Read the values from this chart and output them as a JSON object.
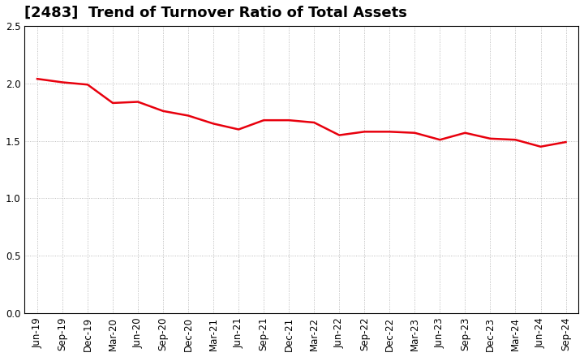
{
  "title": "[2483]  Trend of Turnover Ratio of Total Assets",
  "x_labels": [
    "Jun-19",
    "Sep-19",
    "Dec-19",
    "Mar-20",
    "Jun-20",
    "Sep-20",
    "Dec-20",
    "Mar-21",
    "Jun-21",
    "Sep-21",
    "Dec-21",
    "Mar-22",
    "Jun-22",
    "Sep-22",
    "Dec-22",
    "Mar-23",
    "Jun-23",
    "Sep-23",
    "Dec-23",
    "Mar-24",
    "Jun-24",
    "Sep-24"
  ],
  "y_values": [
    2.04,
    2.01,
    1.99,
    1.83,
    1.84,
    1.76,
    1.72,
    1.65,
    1.6,
    1.68,
    1.68,
    1.66,
    1.55,
    1.58,
    1.58,
    1.57,
    1.51,
    1.57,
    1.52,
    1.51,
    1.45,
    1.49
  ],
  "line_color": "#e8000d",
  "line_width": 1.8,
  "ylim": [
    0.0,
    2.5
  ],
  "yticks": [
    0.0,
    0.5,
    1.0,
    1.5,
    2.0,
    2.5
  ],
  "grid_color": "#aaaaaa",
  "background_color": "#ffffff",
  "title_fontsize": 13,
  "tick_fontsize": 8.5
}
